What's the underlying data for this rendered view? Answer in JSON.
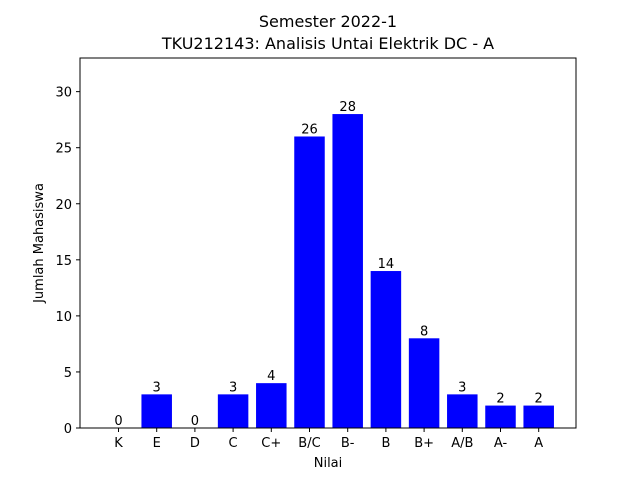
{
  "chart_data": {
    "type": "bar",
    "title_line1": "Semester 2022-1",
    "title_line2": "TKU212143: Analisis Untai Elektrik DC - A",
    "xlabel": "Nilai",
    "ylabel": "Jumlah Mahasiswa",
    "categories": [
      "K",
      "E",
      "D",
      "C",
      "C+",
      "B/C",
      "B-",
      "B",
      "B+",
      "A/B",
      "A-",
      "A"
    ],
    "values": [
      0,
      3,
      0,
      3,
      4,
      26,
      28,
      14,
      8,
      3,
      2,
      2
    ],
    "ylim": [
      0,
      33
    ],
    "yticks": [
      0,
      5,
      10,
      15,
      20,
      25,
      30
    ],
    "bar_color": "#0000ff",
    "grid": false
  }
}
